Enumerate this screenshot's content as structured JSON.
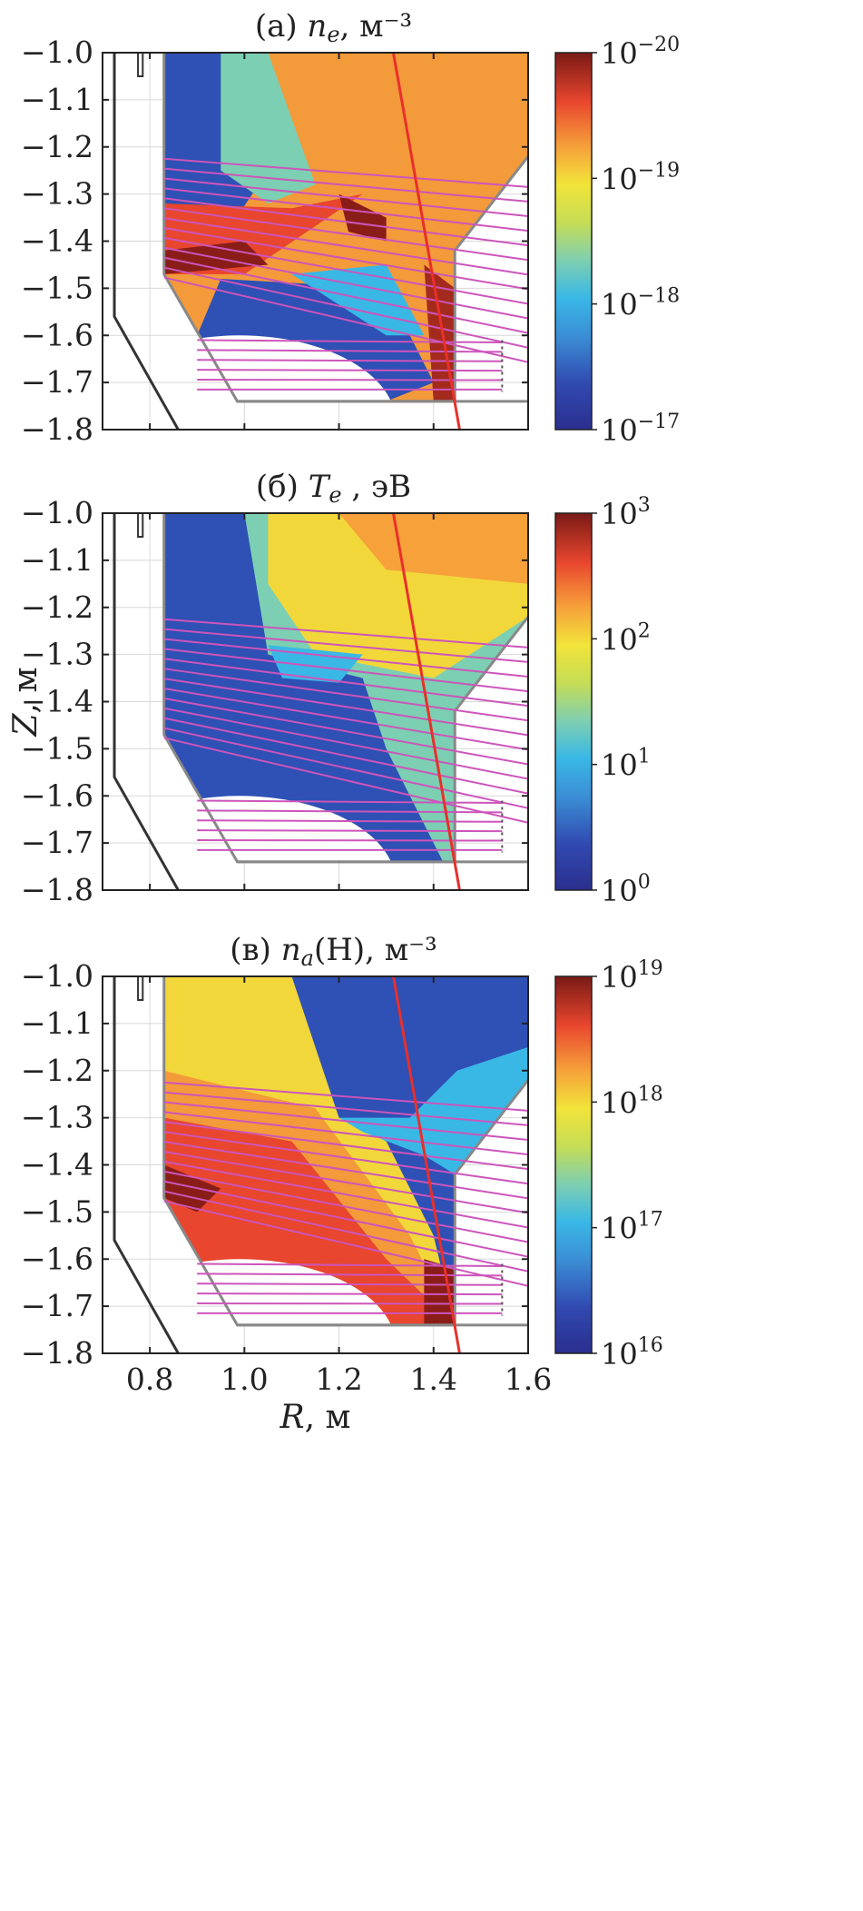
{
  "chart_data": [
    {
      "type": "heatmap",
      "title_prefix": "(а)",
      "title_symbol": "n",
      "title_sub": "e",
      "title_suffix": ", м⁻³",
      "xlim": [
        0.7,
        1.6
      ],
      "ylim": [
        -1.8,
        -1.0
      ],
      "xticks": [],
      "xtick_labels": [],
      "yticks": [
        -1.0,
        -1.1,
        -1.2,
        -1.3,
        -1.4,
        -1.5,
        -1.6,
        -1.7,
        -1.8
      ],
      "ytick_labels": [
        "−1.0",
        "−1.1",
        "−1.2",
        "−1.3",
        "−1.4",
        "−1.5",
        "−1.6",
        "−1.7",
        "−1.8"
      ],
      "colorbar": {
        "scale": "log",
        "range": [
          1e-17,
          1e-20
        ],
        "ticks": [
          {
            "base": "10",
            "exp": "−20"
          },
          {
            "base": "10",
            "exp": "−19"
          },
          {
            "base": "10",
            "exp": "−18"
          },
          {
            "base": "10",
            "exp": "−17"
          }
        ]
      },
      "colormap": "jet",
      "features": [
        "high density near X-point and lower-left divertor leg",
        "high density along outer strike line"
      ]
    },
    {
      "type": "heatmap",
      "title_prefix": "(б)",
      "title_symbol": "T",
      "title_sub": "e",
      "title_suffix": " , эВ",
      "xlim": [
        0.7,
        1.6
      ],
      "ylim": [
        -1.8,
        -1.0
      ],
      "xticks": [],
      "xtick_labels": [],
      "yticks": [
        -1.0,
        -1.1,
        -1.2,
        -1.3,
        -1.4,
        -1.5,
        -1.6,
        -1.7,
        -1.8
      ],
      "ytick_labels": [
        "−1.0",
        "−1.1",
        "−1.2",
        "−1.3",
        "−1.4",
        "−1.5",
        "−1.6",
        "−1.7",
        "−1.8"
      ],
      "ylabel": "Z, м",
      "colorbar": {
        "scale": "log",
        "range": [
          1,
          1000
        ],
        "ticks": [
          {
            "base": "10",
            "exp": "3"
          },
          {
            "base": "10",
            "exp": "2"
          },
          {
            "base": "10",
            "exp": "1"
          },
          {
            "base": "10",
            "exp": "0"
          }
        ]
      },
      "colormap": "jet",
      "features": [
        "hot core region upper right",
        "cold divertor region lower left"
      ]
    },
    {
      "type": "heatmap",
      "title_prefix": "(в)",
      "title_symbol": "n",
      "title_sub": "a",
      "title_suffix": "(H), м⁻³",
      "xlim": [
        0.7,
        1.6
      ],
      "ylim": [
        -1.8,
        -1.0
      ],
      "xticks": [
        0.8,
        1.0,
        1.2,
        1.4,
        1.6
      ],
      "xtick_labels": [
        "0.8",
        "1.0",
        "1.2",
        "1.4",
        "1.6"
      ],
      "yticks": [
        -1.0,
        -1.1,
        -1.2,
        -1.3,
        -1.4,
        -1.5,
        -1.6,
        -1.7,
        -1.8
      ],
      "ytick_labels": [
        "−1.0",
        "−1.1",
        "−1.2",
        "−1.3",
        "−1.4",
        "−1.5",
        "−1.6",
        "−1.7",
        "−1.8"
      ],
      "xlabel": "R, м",
      "colorbar": {
        "scale": "log",
        "range": [
          1e+16,
          1e+19
        ],
        "ticks": [
          {
            "base": "10",
            "exp": "19"
          },
          {
            "base": "10",
            "exp": "18"
          },
          {
            "base": "10",
            "exp": "17"
          },
          {
            "base": "10",
            "exp": "16"
          }
        ]
      },
      "colormap": "jet",
      "features": [
        "high neutral density in lower-left divertor",
        "low neutral density in core"
      ]
    }
  ],
  "overlays": {
    "sightline_color": "#cc55bb",
    "strike_line_color": "#e8302a",
    "wall_color": "#333333",
    "vessel_color": "#888888",
    "grid_color": "#d8d8d8"
  }
}
